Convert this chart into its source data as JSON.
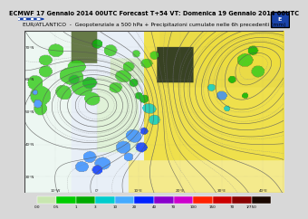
{
  "title_line1": "ECMWF 17 Gennaio 2014 00UTC Forecast T+54 VT: Domenica 19 Gennaio 2014 06UTC",
  "title_line2": "EUR/ATLANTICO  -  Geopotenziale a 500 hPa + Precipitazioni cumulate nelle 6h precedenti (mm)",
  "title_fontsize": 4.8,
  "subtitle_fontsize": 4.3,
  "bg_color": "#d8d8d8",
  "header_color": "#d0d0d0",
  "map_border": "#000000",
  "colorbar_colors": [
    "#c8e6b0",
    "#00cc00",
    "#00bb00",
    "#00cccc",
    "#55aaff",
    "#0000ff",
    "#8800cc",
    "#cc00cc",
    "#ff2200",
    "#cc0000",
    "#880000",
    "#1a0a00"
  ],
  "colorbar_labels": [
    "0.5",
    "1",
    "3",
    "10",
    "20",
    "40",
    "70",
    "100",
    "150",
    "70",
    "1/750"
  ],
  "ocean_color": "#e8eef5",
  "atlantic_low_color": "#ddeedd",
  "land_yellow_color": "#f0e060",
  "land_tan_color": "#e8d850",
  "dark_land_color": "#c8b830",
  "norway_dark": "#303820",
  "greenland_green": "#506040",
  "contour_color": "#555555",
  "contour_dashed_color": "#888888",
  "precip_light_green": "#88dd44",
  "precip_green": "#00bb00",
  "precip_dark_green": "#009900",
  "precip_cyan": "#00cccc",
  "precip_blue": "#0066ff",
  "precip_dark_blue": "#0000dd",
  "precip_violet": "#6600cc",
  "precip_magenta": "#cc00cc",
  "precip_red": "#ff2200",
  "white_map_bg": "#f5f5f0"
}
